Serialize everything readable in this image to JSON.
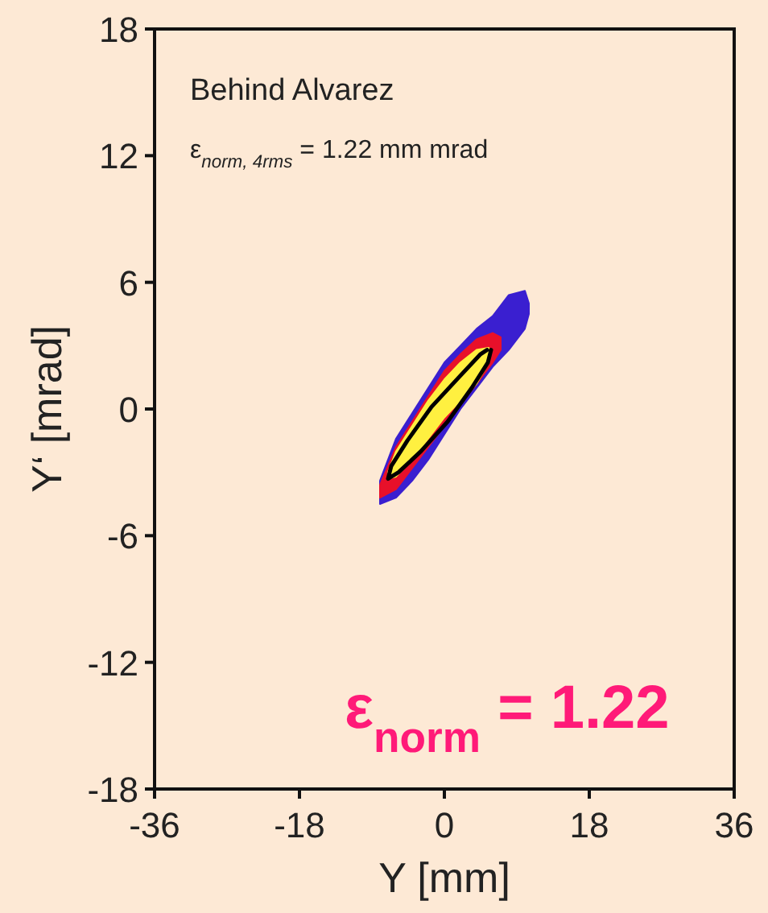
{
  "chart_data": {
    "type": "line",
    "xlabel": "Y [mm]",
    "ylabel": "Y‘ [mrad]",
    "xlim": [
      -36,
      36
    ],
    "xticks": [
      -36,
      -18,
      0,
      18,
      36
    ],
    "ylim": [
      -18,
      18
    ],
    "yticks": [
      -18,
      -12,
      -6,
      0,
      6,
      12,
      18
    ],
    "series": [
      {
        "type": "area",
        "color": "#3a1fd0",
        "x": [
          -8,
          -6,
          -4,
          -2,
          0,
          2,
          4,
          6,
          8,
          10,
          10.5,
          10.5,
          10,
          8,
          6,
          4,
          2,
          0,
          -2,
          -4,
          -6,
          -8,
          -8
        ],
        "values": [
          -4.5,
          -4.2,
          -3.4,
          -2.4,
          -1.2,
          0,
          1,
          2,
          2.8,
          3.8,
          4.5,
          5,
          5.6,
          5.4,
          4.4,
          3.8,
          3,
          2.2,
          1,
          -0.2,
          -1.4,
          -3.4,
          -4.5
        ]
      },
      {
        "type": "area",
        "color": "#e8102a",
        "x": [
          -8,
          -6,
          -4,
          -2,
          0,
          2,
          4,
          6,
          7,
          7,
          6,
          4,
          2,
          0,
          -2,
          -4,
          -6,
          -8,
          -8
        ],
        "values": [
          -4.2,
          -3.8,
          -2.8,
          -1.8,
          -0.8,
          0.2,
          1.2,
          2.2,
          2.8,
          3.4,
          3.6,
          3.3,
          2.6,
          1.8,
          0.6,
          -0.6,
          -1.8,
          -3.6,
          -4.2
        ]
      },
      {
        "type": "area",
        "color": "#fff040",
        "x": [
          -7,
          -6,
          -4,
          -2,
          0,
          2,
          4,
          5.5,
          5.5,
          4,
          2,
          0,
          -2,
          -4,
          -6,
          -7,
          -7
        ],
        "values": [
          -3.3,
          -3.2,
          -2.4,
          -1.4,
          -0.4,
          0.4,
          1.2,
          2.2,
          2.9,
          2.8,
          2.2,
          1.4,
          0.4,
          -0.8,
          -2,
          -3,
          -3.3
        ]
      },
      {
        "color": "#000000",
        "x": [
          5.8,
          5.4,
          3.4,
          0.4,
          -2.9,
          -5.7,
          -7,
          -6.6,
          -4.6,
          -1.6,
          1.8,
          4.5,
          5.3
        ],
        "values": [
          2.8,
          2.2,
          1,
          -0.6,
          -2,
          -3,
          -3.3,
          -2.7,
          -1.5,
          0.1,
          1.5,
          2.6,
          2.8
        ]
      }
    ],
    "annotations": [
      "Behind Alvarez",
      "ε$_{norm, 4rms}$ = 1.22 mm mrad",
      "ε$_{norm}$ = 1.22"
    ]
  }
}
